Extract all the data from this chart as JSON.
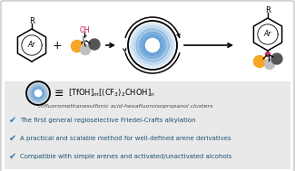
{
  "bg_color": "#f5f5f5",
  "top_panel_color": "#ffffff",
  "bottom_panel_color": "#e8e8e8",
  "border_color": "#cccccc",
  "bullet_color": "#2e75b6",
  "bullet_text_color": "#1a5276",
  "cluster_label": "trifluoromethanesulfonic acid-hexafluoroisopropanol clusters",
  "bullet_points": [
    "The first general regioselective Friedel-Crafts alkylation",
    "A practical and scalable method for well-defined arene derivatives",
    "Compatible with simple arenes and activated/unactivated alcohols"
  ],
  "orange_color": "#f5a623",
  "gray_light_color": "#c0c0c0",
  "gray_dark_color": "#555555",
  "pink_color": "#cc3366",
  "ring_blue": "#5b9bd5",
  "oh_color": "#cc1155"
}
